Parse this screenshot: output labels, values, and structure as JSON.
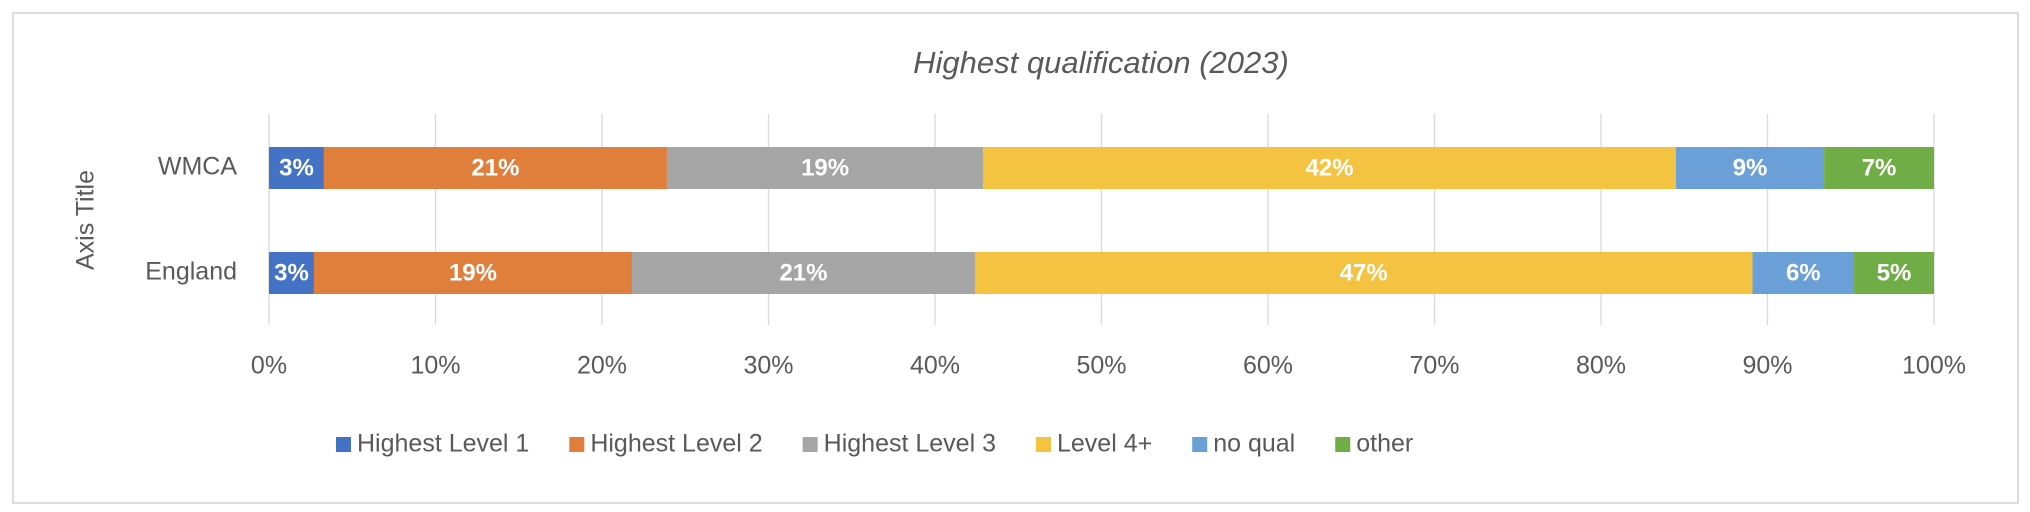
{
  "chart_data": {
    "type": "stacked-bar-horizontal",
    "title": "Highest qualification (2023)",
    "y_axis_label": "Axis Title",
    "categories": [
      "WMCA",
      "England"
    ],
    "series": [
      {
        "name": "Highest Level 1",
        "color": "#4472c4",
        "values": [
          3.3,
          2.7
        ],
        "value_labels": [
          "3%",
          "3%"
        ]
      },
      {
        "name": "Highest Level 2",
        "color": "#e07e3c",
        "values": [
          20.6,
          19.1
        ],
        "value_labels": [
          "21%",
          "19%"
        ]
      },
      {
        "name": "Highest Level 3",
        "color": "#a5a5a5",
        "values": [
          19.0,
          20.6
        ],
        "value_labels": [
          "19%",
          "21%"
        ]
      },
      {
        "name": "Level 4+",
        "color": "#f5c342",
        "values": [
          41.6,
          46.7
        ],
        "value_labels": [
          "42%",
          "47%"
        ]
      },
      {
        "name": "no qual",
        "color": "#6a9fd8",
        "values": [
          8.9,
          6.1
        ],
        "value_labels": [
          "9%",
          "6%"
        ]
      },
      {
        "name": "other",
        "color": "#70ad47",
        "values": [
          6.6,
          4.8
        ],
        "value_labels": [
          "7%",
          "5%"
        ]
      }
    ],
    "xlim": [
      0,
      100
    ],
    "xticks": [
      {
        "value": 0,
        "label": "0%"
      },
      {
        "value": 10,
        "label": "10%"
      },
      {
        "value": 20,
        "label": "20%"
      },
      {
        "value": 30,
        "label": "30%"
      },
      {
        "value": 40,
        "label": "40%"
      },
      {
        "value": 50,
        "label": "50%"
      },
      {
        "value": 60,
        "label": "60%"
      },
      {
        "value": 70,
        "label": "70%"
      },
      {
        "value": 80,
        "label": "80%"
      },
      {
        "value": 90,
        "label": "90%"
      },
      {
        "value": 100,
        "label": "100%"
      }
    ],
    "grid": true,
    "legend": "bottom"
  }
}
